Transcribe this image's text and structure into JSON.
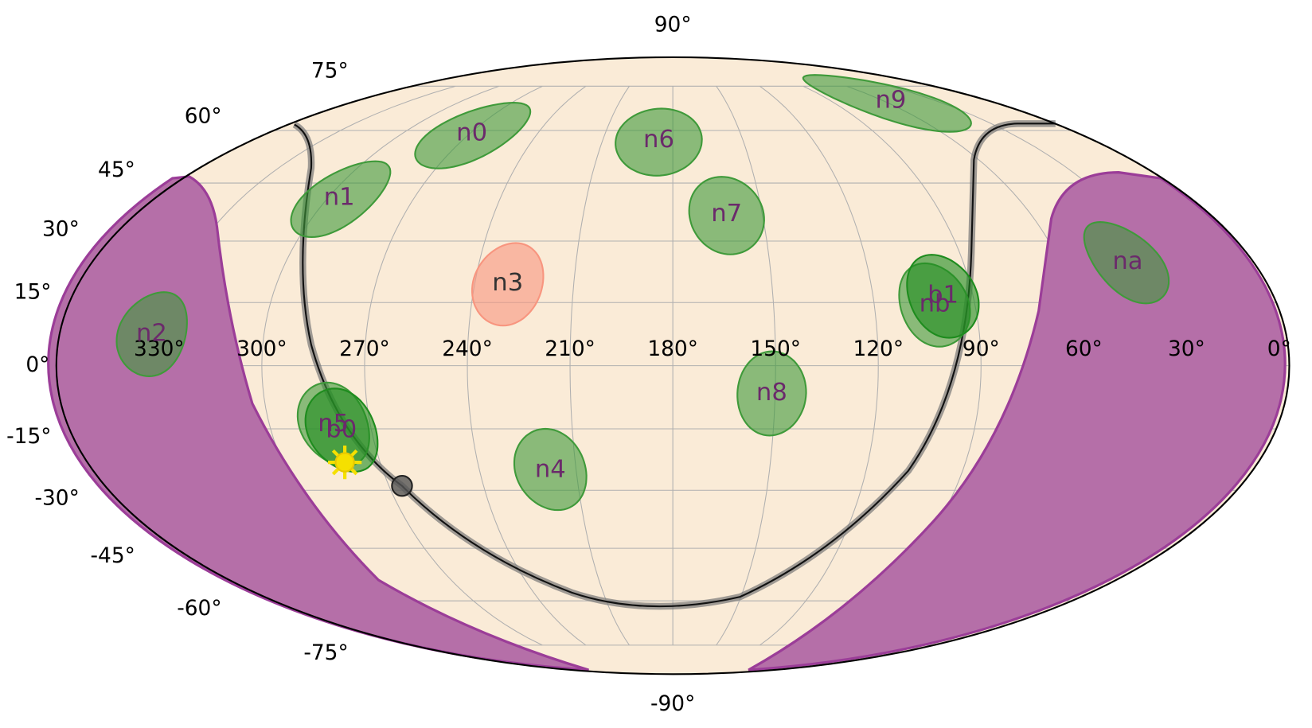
{
  "chart_data": {
    "type": "mollweide",
    "xticks": [
      {
        "value": 330,
        "label": "330°"
      },
      {
        "value": 300,
        "label": "300°"
      },
      {
        "value": 270,
        "label": "270°"
      },
      {
        "value": 240,
        "label": "240°"
      },
      {
        "value": 210,
        "label": "210°"
      },
      {
        "value": 180,
        "label": "180°"
      },
      {
        "value": 150,
        "label": "150°"
      },
      {
        "value": 120,
        "label": "120°"
      },
      {
        "value": 90,
        "label": "90°"
      },
      {
        "value": 60,
        "label": "60°"
      },
      {
        "value": 30,
        "label": "30°"
      },
      {
        "value": 0,
        "label": "0°"
      }
    ],
    "yticks": [
      {
        "value": 90,
        "label": "90°"
      },
      {
        "value": 75,
        "label": "75°"
      },
      {
        "value": 60,
        "label": "60°"
      },
      {
        "value": 45,
        "label": "45°"
      },
      {
        "value": 30,
        "label": "30°"
      },
      {
        "value": 15,
        "label": "15°"
      },
      {
        "value": 0,
        "label": "0°"
      },
      {
        "value": -15,
        "label": "-15°"
      },
      {
        "value": -30,
        "label": "-30°"
      },
      {
        "value": -45,
        "label": "-45°"
      },
      {
        "value": -60,
        "label": "-60°"
      },
      {
        "value": -75,
        "label": "-75°"
      },
      {
        "value": -90,
        "label": "-90°"
      }
    ],
    "grid": true,
    "detectors": [
      {
        "name": "n0",
        "lon": 269,
        "lat": 59,
        "color": "#3f9a3a"
      },
      {
        "name": "n1",
        "lon": 296,
        "lat": 41,
        "color": "#3f9a3a"
      },
      {
        "name": "n2",
        "lon": 333,
        "lat": 7.5,
        "color": "#3f9a3a"
      },
      {
        "name": "n3",
        "lon": 230,
        "lat": 19.5,
        "color": "#f8957f",
        "label_color": "#333333"
      },
      {
        "name": "n4",
        "lon": 218,
        "lat": -25,
        "color": "#3f9a3a"
      },
      {
        "name": "n5",
        "lon": 281,
        "lat": -14,
        "color": "#3f9a3a"
      },
      {
        "name": "n6",
        "lon": 186,
        "lat": 57,
        "color": "#3f9a3a"
      },
      {
        "name": "n7",
        "lon": 162,
        "lat": 36.7,
        "color": "#3f9a3a"
      },
      {
        "name": "n8",
        "lon": 151,
        "lat": -6.6,
        "color": "#3f9a3a"
      },
      {
        "name": "n9",
        "lon": 56,
        "lat": 69.6,
        "color": "#3f9a3a"
      },
      {
        "name": "na",
        "lon": 39,
        "lat": 24.8,
        "color": "#3f9a3a"
      },
      {
        "name": "nb",
        "lon": 102,
        "lat": 14.5,
        "color": "#3f9a3a"
      },
      {
        "name": "b0",
        "lon": 279,
        "lat": -15.4,
        "color": "#1e8c1e"
      },
      {
        "name": "b1",
        "lon": 99,
        "lat": 16.6,
        "color": "#1e8c1e"
      }
    ]
  }
}
